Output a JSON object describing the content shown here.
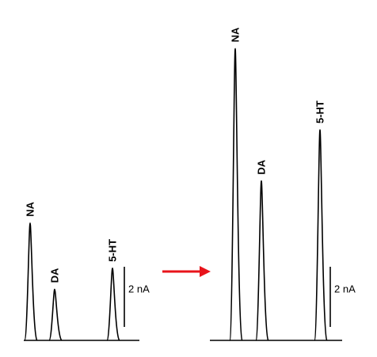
{
  "panels": [
    {
      "peaks": [
        {
          "label": "NA",
          "height": 3.9
        },
        {
          "label": "DA",
          "height": 1.7
        },
        {
          "label": "5-HT",
          "height": 2.4
        }
      ],
      "scale_bar": {
        "value": 2,
        "label": "2 nA"
      }
    },
    {
      "peaks": [
        {
          "label": "NA",
          "height": 9.7
        },
        {
          "label": "DA",
          "height": 5.3
        },
        {
          "label": "5-HT",
          "height": 7.0
        }
      ],
      "scale_bar": {
        "value": 2,
        "label": "2 nA"
      }
    }
  ]
}
